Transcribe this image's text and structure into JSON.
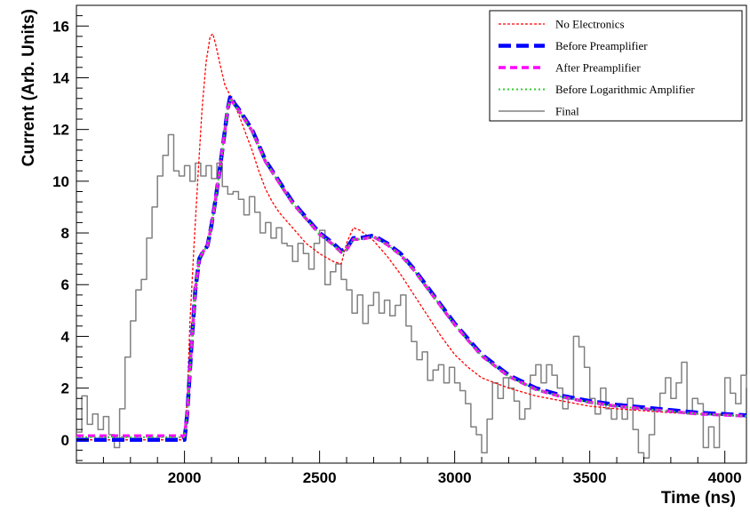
{
  "chart_data": {
    "type": "line",
    "xlabel": "Time (ns)",
    "ylabel": "Current (Arb. Units)",
    "xlim": [
      1600,
      4080
    ],
    "ylim": [
      -0.9,
      16.8
    ],
    "x_ticks": [
      2000,
      2500,
      3000,
      3500,
      4000
    ],
    "y_ticks": [
      0,
      2,
      4,
      6,
      8,
      10,
      12,
      14,
      16
    ],
    "grid": false,
    "legend_position": "top-right",
    "series": [
      {
        "name": "No Electronics",
        "color": "#ff0000",
        "style": "dashed-thin",
        "points": [
          [
            1600,
            0
          ],
          [
            1990,
            0
          ],
          [
            2000,
            0.3
          ],
          [
            2010,
            1.6
          ],
          [
            2020,
            4.5
          ],
          [
            2035,
            7.5
          ],
          [
            2050,
            10.2
          ],
          [
            2065,
            12.8
          ],
          [
            2080,
            14.6
          ],
          [
            2095,
            15.6
          ],
          [
            2105,
            15.7
          ],
          [
            2115,
            15.3
          ],
          [
            2130,
            14.6
          ],
          [
            2150,
            13.7
          ],
          [
            2175,
            13.2
          ],
          [
            2200,
            12.6
          ],
          [
            2225,
            11.9
          ],
          [
            2250,
            11.2
          ],
          [
            2275,
            10.4
          ],
          [
            2300,
            9.7
          ],
          [
            2325,
            9.2
          ],
          [
            2350,
            8.8
          ],
          [
            2400,
            8.2
          ],
          [
            2450,
            7.6
          ],
          [
            2500,
            7.2
          ],
          [
            2550,
            6.9
          ],
          [
            2580,
            6.8
          ],
          [
            2600,
            7.6
          ],
          [
            2625,
            8.2
          ],
          [
            2650,
            8.1
          ],
          [
            2700,
            7.7
          ],
          [
            2750,
            7.1
          ],
          [
            2800,
            6.4
          ],
          [
            2850,
            5.6
          ],
          [
            2900,
            4.8
          ],
          [
            2950,
            4.0
          ],
          [
            3000,
            3.3
          ],
          [
            3050,
            2.8
          ],
          [
            3100,
            2.4
          ],
          [
            3200,
            2.0
          ],
          [
            3300,
            1.7
          ],
          [
            3400,
            1.5
          ],
          [
            3500,
            1.3
          ],
          [
            3600,
            1.2
          ],
          [
            3800,
            1.05
          ],
          [
            4080,
            0.9
          ]
        ]
      },
      {
        "name": "Before Preamplifier",
        "color": "#0000ff",
        "style": "dashed-thick",
        "points": [
          [
            1600,
            0
          ],
          [
            2000,
            0
          ],
          [
            2010,
            1.0
          ],
          [
            2025,
            3.5
          ],
          [
            2040,
            5.8
          ],
          [
            2055,
            7.0
          ],
          [
            2070,
            7.3
          ],
          [
            2085,
            7.5
          ],
          [
            2100,
            8.3
          ],
          [
            2115,
            9.3
          ],
          [
            2130,
            10.4
          ],
          [
            2145,
            11.6
          ],
          [
            2160,
            12.8
          ],
          [
            2170,
            13.3
          ],
          [
            2185,
            13.0
          ],
          [
            2200,
            12.8
          ],
          [
            2225,
            12.4
          ],
          [
            2250,
            12.0
          ],
          [
            2275,
            11.4
          ],
          [
            2300,
            10.8
          ],
          [
            2350,
            10.0
          ],
          [
            2400,
            9.2
          ],
          [
            2450,
            8.6
          ],
          [
            2500,
            8.0
          ],
          [
            2550,
            7.6
          ],
          [
            2580,
            7.3
          ],
          [
            2600,
            7.4
          ],
          [
            2625,
            7.8
          ],
          [
            2650,
            7.8
          ],
          [
            2700,
            7.9
          ],
          [
            2750,
            7.6
          ],
          [
            2800,
            7.2
          ],
          [
            2850,
            6.6
          ],
          [
            2900,
            5.9
          ],
          [
            2950,
            5.2
          ],
          [
            3000,
            4.5
          ],
          [
            3050,
            3.9
          ],
          [
            3100,
            3.3
          ],
          [
            3200,
            2.5
          ],
          [
            3300,
            2.0
          ],
          [
            3400,
            1.7
          ],
          [
            3500,
            1.5
          ],
          [
            3600,
            1.35
          ],
          [
            3700,
            1.25
          ],
          [
            3800,
            1.15
          ],
          [
            3900,
            1.05
          ],
          [
            4080,
            0.95
          ]
        ]
      },
      {
        "name": "After Preamplifier",
        "color": "#ff00ff",
        "style": "dashed-medium",
        "points": [
          [
            1600,
            0.15
          ],
          [
            2000,
            0.15
          ],
          [
            2010,
            1.0
          ],
          [
            2025,
            3.5
          ],
          [
            2040,
            5.8
          ],
          [
            2055,
            7.0
          ],
          [
            2070,
            7.3
          ],
          [
            2085,
            7.5
          ],
          [
            2100,
            8.3
          ],
          [
            2115,
            9.3
          ],
          [
            2130,
            10.4
          ],
          [
            2145,
            11.6
          ],
          [
            2160,
            12.8
          ],
          [
            2170,
            13.2
          ],
          [
            2185,
            12.95
          ],
          [
            2200,
            12.75
          ],
          [
            2225,
            12.35
          ],
          [
            2250,
            11.95
          ],
          [
            2275,
            11.35
          ],
          [
            2300,
            10.75
          ],
          [
            2350,
            9.95
          ],
          [
            2400,
            9.15
          ],
          [
            2450,
            8.55
          ],
          [
            2500,
            7.95
          ],
          [
            2550,
            7.55
          ],
          [
            2580,
            7.25
          ],
          [
            2600,
            7.35
          ],
          [
            2625,
            7.75
          ],
          [
            2650,
            7.75
          ],
          [
            2700,
            7.85
          ],
          [
            2750,
            7.55
          ],
          [
            2800,
            7.15
          ],
          [
            2850,
            6.55
          ],
          [
            2900,
            5.85
          ],
          [
            2950,
            5.15
          ],
          [
            3000,
            4.45
          ],
          [
            3050,
            3.85
          ],
          [
            3100,
            3.25
          ],
          [
            3200,
            2.45
          ],
          [
            3300,
            1.95
          ],
          [
            3400,
            1.65
          ],
          [
            3500,
            1.45
          ],
          [
            3600,
            1.3
          ],
          [
            3700,
            1.2
          ],
          [
            3800,
            1.1
          ],
          [
            3900,
            1.0
          ],
          [
            4080,
            0.92
          ]
        ]
      },
      {
        "name": "Before Logarithmic Amplifier",
        "color": "#33cc33",
        "style": "dotted",
        "points": [
          [
            1600,
            0.1
          ],
          [
            2000,
            0.1
          ],
          [
            2010,
            1.0
          ],
          [
            2025,
            3.5
          ],
          [
            2040,
            5.8
          ],
          [
            2055,
            7.0
          ],
          [
            2070,
            7.3
          ],
          [
            2085,
            7.5
          ],
          [
            2100,
            8.3
          ],
          [
            2115,
            9.3
          ],
          [
            2130,
            10.4
          ],
          [
            2145,
            11.6
          ],
          [
            2160,
            12.8
          ],
          [
            2170,
            13.2
          ],
          [
            2185,
            12.95
          ],
          [
            2200,
            12.75
          ],
          [
            2225,
            12.35
          ],
          [
            2250,
            11.95
          ],
          [
            2275,
            11.35
          ],
          [
            2300,
            10.75
          ],
          [
            2350,
            9.95
          ],
          [
            2400,
            9.15
          ],
          [
            2450,
            8.55
          ],
          [
            2500,
            7.95
          ],
          [
            2550,
            7.55
          ],
          [
            2580,
            7.25
          ],
          [
            2600,
            7.35
          ],
          [
            2625,
            7.75
          ],
          [
            2650,
            7.75
          ],
          [
            2700,
            7.85
          ],
          [
            2750,
            7.55
          ],
          [
            2800,
            7.15
          ],
          [
            2850,
            6.55
          ],
          [
            2900,
            5.85
          ],
          [
            2950,
            5.15
          ],
          [
            3000,
            4.45
          ],
          [
            3050,
            3.85
          ],
          [
            3100,
            3.25
          ],
          [
            3200,
            2.45
          ],
          [
            3300,
            1.95
          ],
          [
            3400,
            1.65
          ],
          [
            3500,
            1.45
          ],
          [
            3600,
            1.3
          ],
          [
            3700,
            1.2
          ],
          [
            3800,
            1.1
          ],
          [
            3900,
            1.0
          ],
          [
            4080,
            0.92
          ]
        ]
      },
      {
        "name": "Final",
        "color": "#808080",
        "style": "solid-step",
        "points": [
          [
            1600,
            0.3
          ],
          [
            1620,
            1.7
          ],
          [
            1640,
            0.6
          ],
          [
            1660,
            1.0
          ],
          [
            1680,
            0.4
          ],
          [
            1700,
            0.9
          ],
          [
            1720,
            0.2
          ],
          [
            1740,
            -0.3
          ],
          [
            1760,
            1.2
          ],
          [
            1780,
            3.2
          ],
          [
            1800,
            4.6
          ],
          [
            1820,
            5.8
          ],
          [
            1840,
            6.2
          ],
          [
            1860,
            7.8
          ],
          [
            1880,
            9.0
          ],
          [
            1900,
            10.2
          ],
          [
            1920,
            11.0
          ],
          [
            1940,
            11.8
          ],
          [
            1960,
            10.4
          ],
          [
            1980,
            10.2
          ],
          [
            2000,
            10.6
          ],
          [
            2020,
            10.0
          ],
          [
            2040,
            10.7
          ],
          [
            2060,
            10.2
          ],
          [
            2080,
            10.6
          ],
          [
            2100,
            10.1
          ],
          [
            2120,
            10.7
          ],
          [
            2140,
            9.8
          ],
          [
            2160,
            9.5
          ],
          [
            2180,
            9.6
          ],
          [
            2200,
            9.3
          ],
          [
            2220,
            8.7
          ],
          [
            2240,
            9.4
          ],
          [
            2260,
            8.8
          ],
          [
            2280,
            8.0
          ],
          [
            2300,
            8.4
          ],
          [
            2320,
            7.8
          ],
          [
            2340,
            8.2
          ],
          [
            2360,
            7.6
          ],
          [
            2380,
            7.5
          ],
          [
            2400,
            6.9
          ],
          [
            2420,
            7.6
          ],
          [
            2440,
            7.2
          ],
          [
            2460,
            6.6
          ],
          [
            2480,
            7.6
          ],
          [
            2500,
            8.1
          ],
          [
            2520,
            6.0
          ],
          [
            2540,
            6.5
          ],
          [
            2560,
            6.8
          ],
          [
            2580,
            6.2
          ],
          [
            2600,
            5.8
          ],
          [
            2620,
            4.9
          ],
          [
            2640,
            5.6
          ],
          [
            2660,
            4.5
          ],
          [
            2680,
            5.2
          ],
          [
            2700,
            5.7
          ],
          [
            2720,
            4.9
          ],
          [
            2740,
            5.4
          ],
          [
            2760,
            4.8
          ],
          [
            2780,
            5.2
          ],
          [
            2800,
            5.6
          ],
          [
            2820,
            4.4
          ],
          [
            2840,
            3.8
          ],
          [
            2860,
            3.1
          ],
          [
            2880,
            3.4
          ],
          [
            2900,
            2.3
          ],
          [
            2920,
            2.7
          ],
          [
            2940,
            2.9
          ],
          [
            2960,
            2.2
          ],
          [
            2980,
            2.8
          ],
          [
            3000,
            2.2
          ],
          [
            3020,
            1.9
          ],
          [
            3040,
            1.4
          ],
          [
            3060,
            0.5
          ],
          [
            3080,
            0.2
          ],
          [
            3100,
            -0.5
          ],
          [
            3120,
            0.8
          ],
          [
            3140,
            2.2
          ],
          [
            3160,
            1.6
          ],
          [
            3180,
            2.4
          ],
          [
            3200,
            2.0
          ],
          [
            3220,
            1.5
          ],
          [
            3240,
            0.8
          ],
          [
            3260,
            1.2
          ],
          [
            3280,
            2.5
          ],
          [
            3300,
            2.9
          ],
          [
            3320,
            2.2
          ],
          [
            3340,
            2.9
          ],
          [
            3360,
            2.5
          ],
          [
            3380,
            2.0
          ],
          [
            3400,
            1.2
          ],
          [
            3420,
            1.6
          ],
          [
            3440,
            4.0
          ],
          [
            3460,
            3.6
          ],
          [
            3480,
            2.8
          ],
          [
            3500,
            1.6
          ],
          [
            3520,
            1.0
          ],
          [
            3540,
            2.0
          ],
          [
            3560,
            1.2
          ],
          [
            3580,
            0.8
          ],
          [
            3600,
            1.4
          ],
          [
            3620,
            0.8
          ],
          [
            3640,
            1.6
          ],
          [
            3660,
            0.4
          ],
          [
            3680,
            -0.5
          ],
          [
            3700,
            -0.7
          ],
          [
            3720,
            0.2
          ],
          [
            3740,
            1.2
          ],
          [
            3760,
            1.8
          ],
          [
            3780,
            2.4
          ],
          [
            3800,
            1.6
          ],
          [
            3820,
            2.2
          ],
          [
            3840,
            3.0
          ],
          [
            3860,
            1.0
          ],
          [
            3880,
            1.6
          ],
          [
            3900,
            1.4
          ],
          [
            3920,
            -0.3
          ],
          [
            3940,
            0.5
          ],
          [
            3960,
            -0.3
          ],
          [
            3980,
            1.0
          ],
          [
            4000,
            2.4
          ],
          [
            4020,
            1.8
          ],
          [
            4040,
            1.4
          ],
          [
            4060,
            2.5
          ],
          [
            4080,
            2.0
          ]
        ]
      }
    ]
  }
}
